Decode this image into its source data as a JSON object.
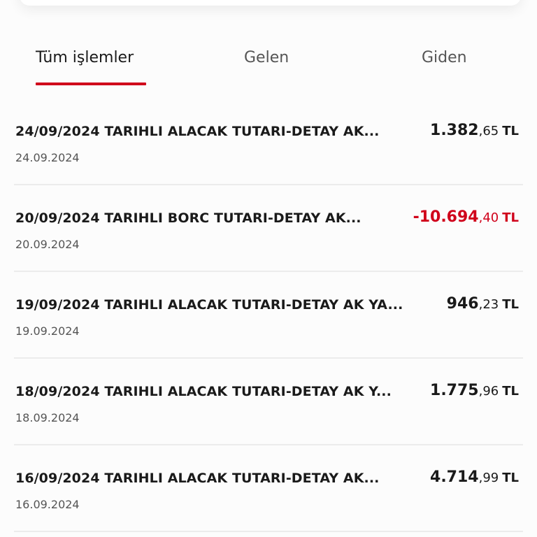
{
  "tabs": [
    {
      "label": "Tüm işlemler",
      "active": true
    },
    {
      "label": "Gelen",
      "active": false
    },
    {
      "label": "Giden",
      "active": false
    }
  ],
  "colors": {
    "accent": "#d0021b",
    "negative": "#d0021b",
    "text": "#1a1a1a"
  },
  "transactions": [
    {
      "title": "24/09/2024 TARIHLI ALACAK TUTARI-DETAY AK...",
      "date": "24.09.2024",
      "amount_int": "1.382",
      "amount_dec": ",65",
      "currency": "TL",
      "negative": false
    },
    {
      "title": "20/09/2024 TARIHLI BORC TUTARI-DETAY AK...",
      "date": "20.09.2024",
      "amount_int": "-10.694",
      "amount_dec": ",40",
      "currency": "TL",
      "negative": true
    },
    {
      "title": "19/09/2024 TARIHLI ALACAK TUTARI-DETAY AK YA...",
      "date": "19.09.2024",
      "amount_int": "946",
      "amount_dec": ",23",
      "currency": "TL",
      "negative": false
    },
    {
      "title": "18/09/2024 TARIHLI ALACAK TUTARI-DETAY AK Y...",
      "date": "18.09.2024",
      "amount_int": "1.775",
      "amount_dec": ",96",
      "currency": "TL",
      "negative": false
    },
    {
      "title": "16/09/2024 TARIHLI ALACAK TUTARI-DETAY AK...",
      "date": "16.09.2024",
      "amount_int": "4.714",
      "amount_dec": ",99",
      "currency": "TL",
      "negative": false
    }
  ]
}
